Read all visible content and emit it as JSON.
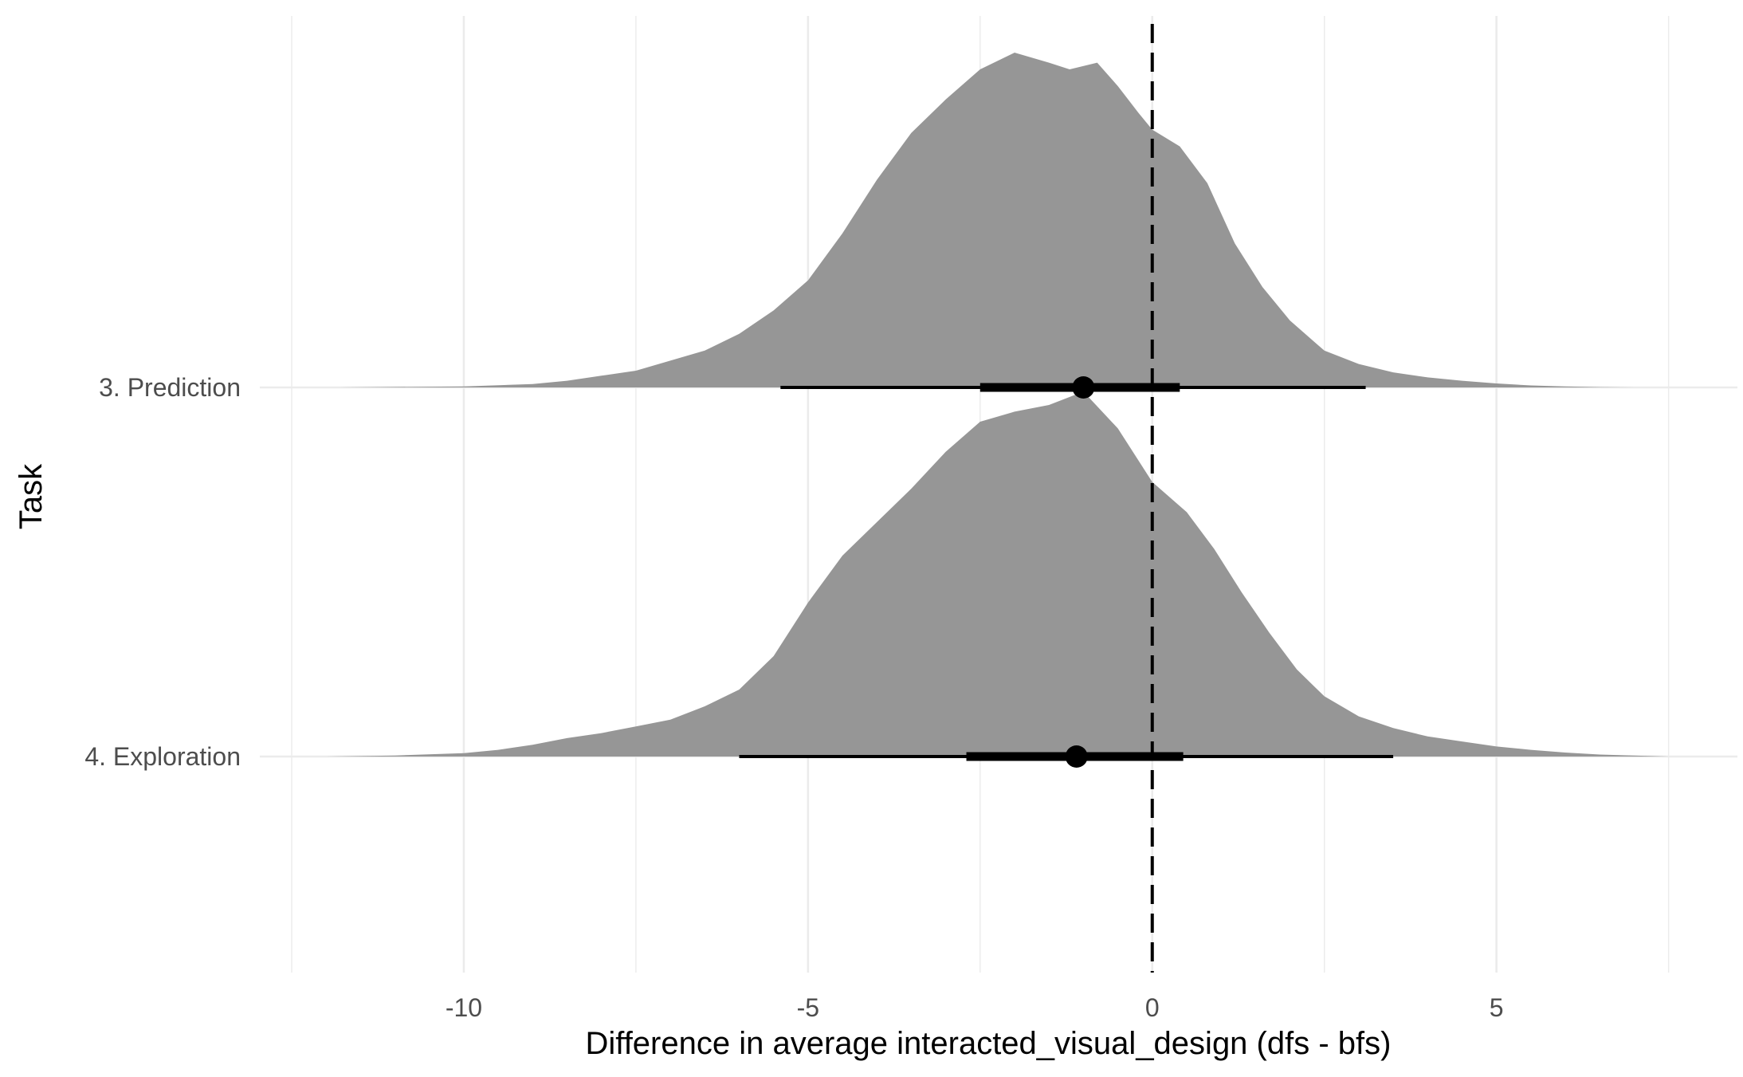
{
  "chart_data": {
    "type": "area",
    "subtype": "halfeye-density-with-interval",
    "xlabel": "Difference in average  interacted_visual_design (dfs - bfs)",
    "ylabel": "Task",
    "xlim": [
      -12.5,
      8.5
    ],
    "x_ticks": [
      -10,
      -5,
      0,
      5
    ],
    "x_tick_labels": [
      "-10",
      "-5",
      "0",
      "5"
    ],
    "grid": true,
    "reference_line": {
      "x": 0,
      "style": "dashed"
    },
    "colors": {
      "density": "#969696",
      "interval": "#000000",
      "grid": "#ebebeb"
    },
    "categories": [
      "3. Prediction",
      "4. Exploration"
    ],
    "series": [
      {
        "name": "3. Prediction",
        "point": -1.0,
        "interval_66": [
          -2.5,
          0.4
        ],
        "interval_95": [
          -5.4,
          3.1
        ],
        "density": {
          "x": [
            -11.8,
            -10.0,
            -9.0,
            -8.5,
            -8.0,
            -7.5,
            -7.0,
            -6.5,
            -6.0,
            -5.5,
            -5.0,
            -4.5,
            -4.0,
            -3.5,
            -3.0,
            -2.5,
            -2.0,
            -1.5,
            -1.2,
            -0.8,
            -0.5,
            -0.2,
            0.0,
            0.4,
            0.8,
            1.2,
            1.6,
            2.0,
            2.5,
            3.0,
            3.5,
            4.0,
            4.5,
            5.0,
            5.5,
            6.0,
            6.5,
            7.0
          ],
          "y": [
            0.0,
            0.003,
            0.01,
            0.02,
            0.035,
            0.05,
            0.08,
            0.11,
            0.16,
            0.23,
            0.32,
            0.46,
            0.62,
            0.76,
            0.86,
            0.95,
            1.0,
            0.97,
            0.95,
            0.97,
            0.9,
            0.82,
            0.77,
            0.72,
            0.61,
            0.43,
            0.3,
            0.2,
            0.11,
            0.07,
            0.045,
            0.03,
            0.02,
            0.012,
            0.006,
            0.003,
            0.001,
            0.0
          ]
        }
      },
      {
        "name": "4. Exploration",
        "point": -1.1,
        "interval_66": [
          -2.7,
          0.45
        ],
        "interval_95": [
          -6.0,
          3.5
        ],
        "density": {
          "x": [
            -12.0,
            -11.0,
            -10.0,
            -9.5,
            -9.0,
            -8.5,
            -8.0,
            -7.5,
            -7.0,
            -6.5,
            -6.0,
            -5.5,
            -5.0,
            -4.5,
            -4.0,
            -3.5,
            -3.0,
            -2.5,
            -2.0,
            -1.5,
            -1.0,
            -0.5,
            0.0,
            0.5,
            0.9,
            1.3,
            1.7,
            2.1,
            2.5,
            3.0,
            3.5,
            4.0,
            4.5,
            5.0,
            5.5,
            6.0,
            6.5,
            7.0,
            7.5
          ],
          "y": [
            0.0,
            0.003,
            0.01,
            0.02,
            0.035,
            0.055,
            0.07,
            0.09,
            0.11,
            0.15,
            0.2,
            0.3,
            0.46,
            0.6,
            0.7,
            0.8,
            0.91,
            1.0,
            1.03,
            1.05,
            1.09,
            0.98,
            0.82,
            0.73,
            0.62,
            0.49,
            0.37,
            0.26,
            0.18,
            0.12,
            0.085,
            0.06,
            0.045,
            0.03,
            0.02,
            0.012,
            0.006,
            0.003,
            0.0
          ]
        }
      }
    ]
  }
}
